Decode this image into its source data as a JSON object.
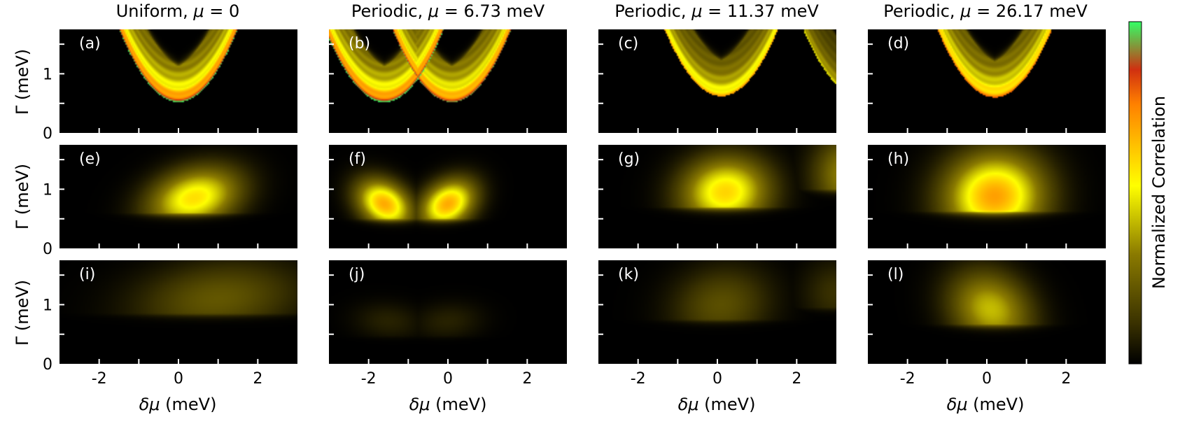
{
  "chart_data": {
    "type": "heatmap",
    "column_titles": [
      {
        "prefix": "Uniform, ",
        "mu_symbol": "μ",
        "value": " = 0"
      },
      {
        "prefix": "Periodic, ",
        "mu_symbol": "μ",
        "value": " = 6.73 meV"
      },
      {
        "prefix": "Periodic, ",
        "mu_symbol": "μ",
        "value": " = 11.37 meV"
      },
      {
        "prefix": "Periodic, ",
        "mu_symbol": "μ",
        "value": " = 26.17 meV"
      }
    ],
    "panel_labels": [
      "(a)",
      "(b)",
      "(c)",
      "(d)",
      "(e)",
      "(f)",
      "(g)",
      "(h)",
      "(i)",
      "(j)",
      "(k)",
      "(l)"
    ],
    "xlabel": {
      "symbol": "δμ",
      "unit": " (meV)"
    },
    "ylabel": {
      "symbol": "Γ",
      "unit": " (meV)"
    },
    "xlim": [
      -3,
      3
    ],
    "ylim": [
      0,
      1.75
    ],
    "x_ticks": [
      -2,
      0,
      2
    ],
    "x_tick_labels": [
      "-2",
      "0",
      "2"
    ],
    "x_minor_ticks": [
      -2,
      -1,
      0,
      1,
      2
    ],
    "y_ticks": [
      0,
      1
    ],
    "y_tick_labels": [
      "0",
      "1"
    ],
    "y_minor_ticks": [
      0.5,
      1,
      1.5
    ],
    "colorbar": {
      "label": "Normalized Correlation",
      "colors": [
        "#000000",
        "#3a3200",
        "#8a7a00",
        "#ffff00",
        "#ffc000",
        "#ff8000",
        "#d03010",
        "#33ff66"
      ]
    },
    "panels": [
      {
        "id": "a",
        "type": "hard",
        "blobs": [
          {
            "cx": 0,
            "minG": 0.52,
            "s": 1.5,
            "ds": 0.3,
            "intensity": 1.0
          }
        ]
      },
      {
        "id": "b",
        "type": "hard",
        "blobs": [
          {
            "cx": -1.6,
            "minG": 0.52,
            "s": 1.5,
            "ds": 0.3,
            "intensity": 1.0
          },
          {
            "cx": 0.1,
            "minG": 0.52,
            "s": 1.5,
            "ds": 0.3,
            "intensity": 0.95
          }
        ]
      },
      {
        "id": "c",
        "type": "hard",
        "blobs": [
          {
            "cx": 0.1,
            "minG": 0.62,
            "s": 1.4,
            "ds": 0.32,
            "intensity": 0.72
          },
          {
            "cx": 3.6,
            "minG": 0.62,
            "s": 1.4,
            "ds": 0.32,
            "intensity": 0.5
          }
        ]
      },
      {
        "id": "d",
        "type": "hard",
        "blobs": [
          {
            "cx": 0.2,
            "minG": 0.6,
            "s": 1.3,
            "ds": 0.35,
            "intensity": 0.8
          }
        ]
      },
      {
        "id": "e",
        "type": "soft",
        "blobs": [
          {
            "cx": 0.4,
            "peakG": 0.85,
            "sx": 0.75,
            "sy": 0.35,
            "slope": 0.6,
            "intensity": 0.58
          }
        ]
      },
      {
        "id": "f",
        "type": "soft",
        "blobs": [
          {
            "cx": -1.6,
            "peakG": 0.75,
            "sx": 0.45,
            "sy": 0.28,
            "slope": -0.5,
            "intensity": 0.68
          },
          {
            "cx": 0,
            "peakG": 0.75,
            "sx": 0.45,
            "sy": 0.28,
            "slope": 0.5,
            "intensity": 0.68
          }
        ]
      },
      {
        "id": "g",
        "type": "soft",
        "blobs": [
          {
            "cx": 0.2,
            "peakG": 0.95,
            "sx": 0.75,
            "sy": 0.4,
            "slope": 0.1,
            "intensity": 0.6
          },
          {
            "cx": 3.3,
            "peakG": 1.25,
            "sx": 0.6,
            "sy": 0.45,
            "slope": 0,
            "intensity": 0.35
          }
        ]
      },
      {
        "id": "h",
        "type": "soft",
        "blobs": [
          {
            "cx": 0.2,
            "peakG": 0.88,
            "sx": 0.85,
            "sy": 0.5,
            "slope": 0.05,
            "intensity": 0.7
          }
        ]
      },
      {
        "id": "i",
        "type": "soft",
        "blobs": [
          {
            "cx": 1.0,
            "peakG": 1.1,
            "sx": 1.4,
            "sy": 0.45,
            "slope": 0.6,
            "intensity": 0.22
          }
        ]
      },
      {
        "id": "j",
        "type": "soft",
        "blobs": [
          {
            "cx": -1.5,
            "peakG": 0.72,
            "sx": 0.6,
            "sy": 0.22,
            "slope": -0.3,
            "intensity": 0.08
          },
          {
            "cx": 0,
            "peakG": 0.72,
            "sx": 0.6,
            "sy": 0.22,
            "slope": 0.3,
            "intensity": 0.08
          }
        ]
      },
      {
        "id": "k",
        "type": "soft",
        "blobs": [
          {
            "cx": 0.1,
            "peakG": 1.0,
            "sx": 0.85,
            "sy": 0.45,
            "slope": 0.2,
            "intensity": 0.2
          },
          {
            "cx": 3.0,
            "peakG": 1.2,
            "sx": 0.6,
            "sy": 0.4,
            "slope": 0,
            "intensity": 0.12
          }
        ]
      },
      {
        "id": "l",
        "type": "soft",
        "blobs": [
          {
            "cx": 0.1,
            "peakG": 0.92,
            "sx": 0.7,
            "sy": 0.45,
            "slope": -0.3,
            "intensity": 0.42
          }
        ]
      }
    ]
  }
}
